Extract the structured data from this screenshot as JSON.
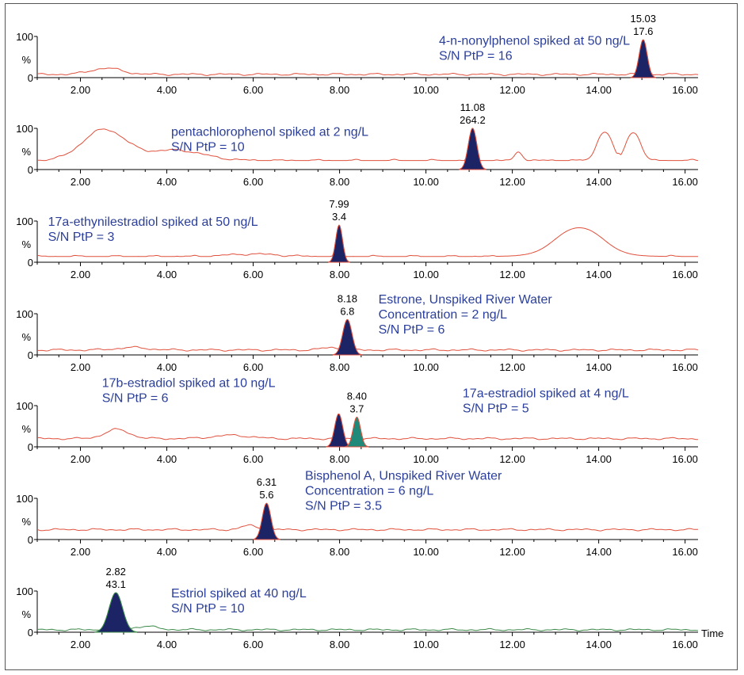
{
  "chart_data": {
    "type": "line",
    "x_axis": {
      "range": [
        1.0,
        16.3
      ],
      "ticks": [
        "2.00",
        "4.00",
        "6.00",
        "8.00",
        "10.00",
        "12.00",
        "14.00",
        "16.00"
      ],
      "label": "Time"
    },
    "y_axis": {
      "range": [
        0,
        100
      ],
      "ticks": [
        "100",
        "0"
      ],
      "label": "%"
    },
    "colors": {
      "trace_red": "#e0503c",
      "trace_green": "#3d8a4a",
      "peak_navy": "#1c2466",
      "peak_teal": "#1f8a7a",
      "annotation": "#2b3f9a"
    },
    "panels": [
      {
        "trace_color": "#e0503c",
        "baseline": 8,
        "bumps": [
          [
            2.6,
            15,
            0.5
          ]
        ],
        "plateaus": [],
        "peaks": [
          {
            "rt": 15.03,
            "height": 92,
            "width": 0.13,
            "color": "#1c2466",
            "label_rt": "15.03",
            "label_value": "17.6"
          }
        ],
        "annotation": [
          "4-n-nonylphenol spiked at 50 ng/L",
          "S/N PtP = 16"
        ],
        "annotation_x": 10.3,
        "annotation_y": 80
      },
      {
        "trace_color": "#e0503c",
        "baseline": 22,
        "bumps": [
          [
            2.55,
            75,
            0.7
          ],
          [
            4.2,
            25,
            0.9
          ],
          [
            12.15,
            22,
            0.12
          ]
        ],
        "plateaus": [
          [
            13.95,
            14.33,
            100,
            0.07
          ],
          [
            14.62,
            14.98,
            100,
            0.07
          ],
          [
            14.4,
            14.5,
            55,
            0.05
          ]
        ],
        "peaks": [
          {
            "rt": 11.08,
            "height": 100,
            "width": 0.14,
            "color": "#1c2466",
            "label_rt": "11.08",
            "label_value": "264.2"
          }
        ],
        "annotation": [
          "pentachlorophenol spiked at 2 ng/L",
          "S/N PtP = 10"
        ],
        "annotation_x": 4.1,
        "annotation_y": 82
      },
      {
        "trace_color": "#e0503c",
        "baseline": 14,
        "bumps": [
          [
            6.0,
            6,
            0.8
          ]
        ],
        "plateaus": [
          [
            13.0,
            14.1,
            100,
            0.25
          ]
        ],
        "peaks": [
          {
            "rt": 7.99,
            "height": 90,
            "width": 0.11,
            "color": "#1c2466",
            "label_rt": "7.99",
            "label_value": "3.4"
          }
        ],
        "annotation": [
          "17a-ethynilestradiol spiked at 50 ng/L",
          "S/N PtP = 3"
        ],
        "annotation_x": 1.25,
        "annotation_y": 88
      },
      {
        "trace_color": "#e0503c",
        "baseline": 12,
        "bumps": [
          [
            3.2,
            6,
            0.5
          ],
          [
            7.8,
            6,
            0.3
          ]
        ],
        "plateaus": [],
        "peaks": [
          {
            "rt": 8.18,
            "height": 86,
            "width": 0.15,
            "color": "#1c2466",
            "label_rt": "8.18",
            "label_value": "6.8"
          }
        ],
        "annotation": [
          "Estrone, Unspiked River Water",
          "Concentration = 2 ng/L",
          "S/N PtP = 6"
        ],
        "annotation_x": 8.9,
        "annotation_y": 125
      },
      {
        "trace_color": "#e0503c",
        "baseline": 20,
        "bumps": [
          [
            2.85,
            22,
            0.4
          ],
          [
            5.5,
            8,
            0.6
          ]
        ],
        "plateaus": [],
        "peaks": [
          {
            "rt": 7.98,
            "height": 80,
            "width": 0.13,
            "color": "#1c2466",
            "label_rt": "",
            "label_value": ""
          },
          {
            "rt": 8.4,
            "height": 72,
            "width": 0.12,
            "color": "#1f8a7a",
            "label_rt": "8.40",
            "label_value": "3.7"
          }
        ],
        "annotation": [
          "17b-estradiol spiked at 10 ng/L",
          "S/N PtP = 6"
        ],
        "annotation_x": 2.5,
        "annotation_y": 145,
        "annotation2": [
          "17a-estradiol spiked at 4 ng/L",
          "S/N PtP = 5"
        ],
        "annotation2_x": 10.85,
        "annotation2_y": 120
      },
      {
        "trace_color": "#e0503c",
        "baseline": 24,
        "bumps": [
          [
            5.9,
            10,
            0.25
          ]
        ],
        "plateaus": [],
        "peaks": [
          {
            "rt": 6.31,
            "height": 88,
            "width": 0.14,
            "color": "#1c2466",
            "label_rt": "6.31",
            "label_value": "5.6"
          }
        ],
        "annotation": [
          "Bisphenol A, Unspiked River Water",
          "Concentration = 6 ng/L",
          "S/N PtP = 3.5"
        ],
        "annotation_x": 7.2,
        "annotation_y": 145
      },
      {
        "trace_color": "#3d8a4a",
        "baseline": 6,
        "bumps": [
          [
            3.5,
            8,
            0.4
          ]
        ],
        "plateaus": [],
        "peaks": [
          {
            "rt": 2.82,
            "height": 96,
            "width": 0.22,
            "color": "#1c2466",
            "label_rt": "2.82",
            "label_value": "43.1"
          }
        ],
        "annotation": [
          "Estriol spiked at 40 ng/L",
          "S/N PtP = 10"
        ],
        "annotation_x": 4.1,
        "annotation_y": 85
      }
    ]
  }
}
